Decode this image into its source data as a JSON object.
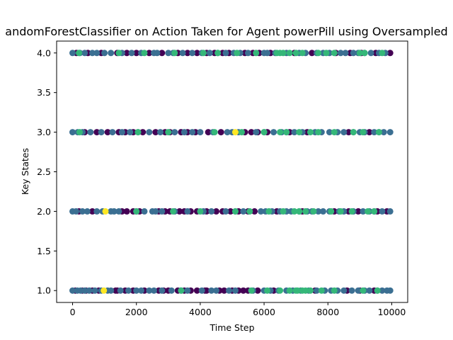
{
  "chart_data": {
    "type": "scatter",
    "title": "andomForestClassifier on Action Taken for Agent powerPill using Oversampled",
    "xlabel": "Time Step",
    "ylabel": "Key States",
    "xlim": [
      -500,
      10500
    ],
    "ylim": [
      0.85,
      4.15
    ],
    "x_ticks": [
      "0",
      "2000",
      "4000",
      "6000",
      "8000",
      "10000"
    ],
    "y_ticks": [
      "1.0",
      "1.5",
      "2.0",
      "2.5",
      "3.0",
      "3.5",
      "4.0"
    ],
    "x_tick_values": [
      0,
      2000,
      4000,
      6000,
      8000,
      10000
    ],
    "y_tick_values": [
      1.0,
      1.5,
      2.0,
      2.5,
      3.0,
      3.5,
      4.0
    ],
    "grid": false,
    "legend": "none",
    "colormap": "viridis",
    "palette": {
      "dark_purple": "#440154",
      "blue": "#3b6f92",
      "teal_green": "#35b779",
      "yellow": "#fde725"
    },
    "x_range": [
      0,
      10000
    ],
    "y_levels": [
      1,
      2,
      3,
      4
    ],
    "series": [
      {
        "color": "#440154",
        "points_by_level": {
          "1": [
            90,
            300,
            420,
            620,
            820,
            1350,
            1400,
            1650,
            1900,
            2250,
            2700,
            2850,
            3000,
            3300,
            3500,
            3700,
            3900,
            4150,
            4200,
            4600,
            4750,
            5000,
            5200,
            5350,
            5500,
            5800,
            6300,
            7600,
            8600,
            9000,
            9450
          ],
          "2": [
            200,
            620,
            1550,
            1700,
            1900,
            2100,
            2700,
            2900,
            3050,
            3350,
            3500,
            3700,
            3900,
            4200,
            4500,
            4700,
            4950,
            5200,
            5500,
            5700,
            6400,
            7200,
            8200,
            8650,
            8950,
            9550,
            9850
          ],
          "3": [
            380,
            760,
            1100,
            1450,
            1650,
            1900,
            2200,
            2600,
            2900,
            3050,
            3400,
            3600,
            3850,
            4250,
            4650,
            5400,
            5600,
            5800,
            6100,
            6800,
            7350,
            8650,
            9300
          ],
          "4": [
            120,
            480,
            900,
            1400,
            1700,
            2000,
            2400,
            2800,
            3300,
            3600,
            3900,
            4200,
            4450,
            4700,
            4900,
            5400,
            5650,
            5850,
            6200,
            6950,
            7500,
            8250,
            8700,
            9050,
            9500,
            9950
          ]
        }
      },
      {
        "color": "#3b6f92",
        "points_by_level": {
          "1": [
            0,
            150,
            250,
            380,
            520,
            700,
            900,
            1100,
            1200,
            1500,
            1750,
            2000,
            2150,
            2400,
            2550,
            2800,
            3100,
            3400,
            3600,
            4050,
            4350,
            4500,
            4900,
            5100,
            5650,
            6000,
            6200,
            6450,
            6700,
            6900,
            7150,
            7400,
            7650,
            7900,
            8100,
            8300,
            8500,
            8750,
            8950,
            9150,
            9300,
            9550,
            9700,
            9850,
            9950
          ],
          "2": [
            0,
            110,
            310,
            460,
            760,
            940,
            1200,
            1300,
            1450,
            2000,
            2250,
            2500,
            2600,
            2800,
            3200,
            3600,
            4100,
            4350,
            4800,
            5100,
            5350,
            5900,
            6050,
            6250,
            6500,
            6700,
            6850,
            7100,
            7350,
            7500,
            7700,
            7850,
            8050,
            8350,
            8500,
            8800,
            9100,
            9300,
            9450,
            9700,
            9950
          ],
          "3": [
            0,
            160,
            310,
            560,
            900,
            1250,
            1550,
            1800,
            2050,
            2400,
            2750,
            3200,
            3500,
            3750,
            4000,
            4400,
            4850,
            5000,
            5200,
            5750,
            6000,
            6300,
            6550,
            6700,
            6950,
            7200,
            7600,
            7800,
            8050,
            8300,
            8500,
            8800,
            9000,
            9150,
            9450,
            9600,
            9750,
            9950
          ],
          "4": [
            0,
            230,
            380,
            620,
            760,
            1000,
            1200,
            1550,
            1850,
            2150,
            2550,
            2650,
            3000,
            3150,
            3450,
            3750,
            4050,
            4300,
            4550,
            4800,
            5050,
            5250,
            5500,
            6000,
            6100,
            6350,
            6700,
            7100,
            7300,
            7650,
            7850,
            8050,
            8400,
            8550,
            8800,
            8950,
            9150,
            9350,
            9600,
            9800
          ]
        }
      },
      {
        "color": "#35b779",
        "points_by_level": {
          "1": [
            3400,
            5600,
            6100,
            6500,
            6800,
            7000,
            7050,
            7200,
            7300,
            7450,
            7800,
            8200,
            9100,
            9550
          ],
          "2": [
            2000,
            3150,
            4000,
            5100,
            5550,
            6150,
            6600,
            6950,
            7100,
            7300,
            7550,
            8100,
            8400,
            8750,
            9250,
            9450
          ],
          "3": [
            220,
            2050,
            3000,
            4450,
            5300,
            6000,
            6500,
            6700,
            7100,
            7450,
            7700,
            8200,
            8800,
            9100,
            9600
          ],
          "4": [
            200,
            1450,
            2250,
            3200,
            4100,
            4550,
            5150,
            5750,
            6400,
            6500,
            6600,
            6800,
            7000,
            7200,
            7700,
            7950,
            8200,
            9000,
            9150,
            9700
          ]
        }
      },
      {
        "color": "#fde725",
        "points_by_level": {
          "1": [
            980
          ],
          "2": [
            1030
          ],
          "3": [
            5100
          ],
          "4": []
        }
      }
    ]
  }
}
